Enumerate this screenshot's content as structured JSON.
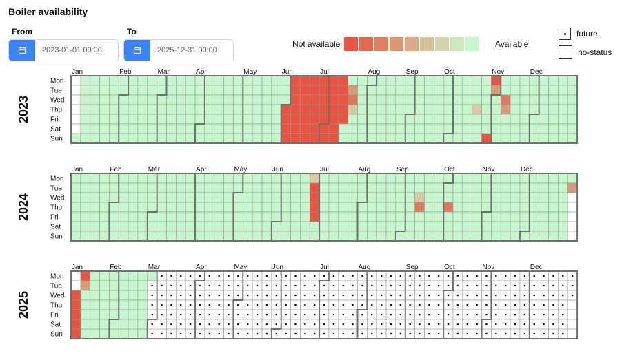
{
  "title": "Boiler availability",
  "from": {
    "label": "From",
    "value": "2023-01-01 00:00",
    "button_icon": "calendar-icon"
  },
  "to": {
    "label": "To",
    "value": "2025-12-31 00:00",
    "button_icon": "calendar-icon"
  },
  "legend": {
    "low_label": "Not available",
    "high_label": "Available",
    "colors": [
      "#e8543f",
      "#e66a4e",
      "#e27f5c",
      "#de9570",
      "#dba985",
      "#d8bf98",
      "#d4d4aa",
      "#cde7bd",
      "#c6f6cc"
    ]
  },
  "key": {
    "future_label": "future",
    "no_status_label": "no-status"
  },
  "colors": {
    "available": "#c6f6cc",
    "unavailable": "#e8543f",
    "partial_light": "#d8c9a0",
    "partial_mid": "#d59c77",
    "partial_strong": "#e07760",
    "grid_line": "#999999",
    "month_border": "#707070"
  },
  "chart_data": {
    "type": "heatmap",
    "description_units": "daily boiler availability status, calendar layout (weekday rows × week columns)",
    "weekday_labels": [
      "Mon",
      "Tue",
      "Wed",
      "Thu",
      "Fri",
      "Sat",
      "Sun"
    ],
    "month_labels": [
      "Jan",
      "Feb",
      "Mar",
      "Apr",
      "May",
      "Jun",
      "Jul",
      "Aug",
      "Sep",
      "Oct",
      "Nov",
      "Dec"
    ],
    "default_status": "available",
    "years": [
      {
        "year": "2023",
        "overrides": [
          {
            "from": "2023-06-01",
            "to": "2023-07-14",
            "status": "unavailable"
          },
          {
            "from": "2023-07-18",
            "to": "2023-07-18",
            "status": "partial_mid"
          },
          {
            "from": "2023-07-19",
            "to": "2023-07-19",
            "status": "partial_strong"
          },
          {
            "from": "2023-07-20",
            "to": "2023-07-20",
            "status": "partial_light"
          },
          {
            "from": "2023-10-19",
            "to": "2023-10-19",
            "status": "partial_light"
          },
          {
            "from": "2023-10-29",
            "to": "2023-10-29",
            "status": "unavailable"
          },
          {
            "from": "2023-10-30",
            "to": "2023-10-30",
            "status": "unavailable"
          },
          {
            "from": "2023-10-31",
            "to": "2023-10-31",
            "status": "partial_mid"
          },
          {
            "from": "2023-11-08",
            "to": "2023-11-08",
            "status": "partial_strong"
          },
          {
            "from": "2023-11-09",
            "to": "2023-11-09",
            "status": "partial_mid"
          }
        ]
      },
      {
        "year": "2024",
        "overrides": [
          {
            "from": "2024-06-24",
            "to": "2024-06-24",
            "status": "partial_light"
          },
          {
            "from": "2024-06-25",
            "to": "2024-06-28",
            "status": "unavailable"
          },
          {
            "from": "2024-09-11",
            "to": "2024-09-11",
            "status": "partial_light"
          },
          {
            "from": "2024-09-12",
            "to": "2024-09-12",
            "status": "partial_strong"
          },
          {
            "from": "2024-10-03",
            "to": "2024-10-03",
            "status": "partial_strong"
          },
          {
            "from": "2024-12-31",
            "to": "2024-12-31",
            "status": "partial_mid"
          }
        ]
      },
      {
        "year": "2025",
        "overrides": [
          {
            "from": "2025-01-01",
            "to": "2025-01-06",
            "status": "unavailable"
          },
          {
            "from": "2025-01-07",
            "to": "2025-01-07",
            "status": "partial_mid"
          },
          {
            "from": "2025-02-25",
            "to": "2025-12-31",
            "status": "future"
          }
        ]
      }
    ]
  }
}
